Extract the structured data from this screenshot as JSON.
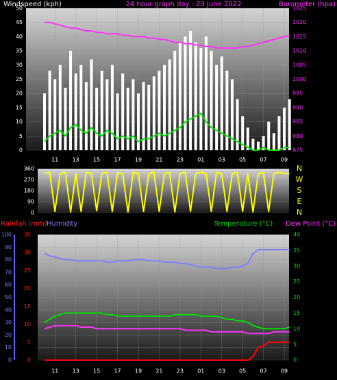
{
  "chart_data": [
    {
      "type": "bar",
      "title": "24 hour graph day : 23 June 2022",
      "ylabel": "Windspeed (kph)",
      "y2label": "Barometer (hpa)",
      "categories": [
        null,
        null,
        "11",
        null,
        null,
        null,
        "13",
        null,
        null,
        null,
        "15",
        null,
        null,
        null,
        "17",
        null,
        null,
        null,
        "19",
        null,
        null,
        null,
        "21",
        null,
        null,
        null,
        "23",
        null,
        null,
        null,
        "01",
        null,
        null,
        null,
        "03",
        null,
        null,
        null,
        "05",
        null,
        null,
        null,
        "07",
        null,
        null,
        null,
        "09",
        null
      ],
      "ylim": [
        0,
        50
      ],
      "yticks": [
        0,
        5,
        10,
        15,
        20,
        25,
        30,
        35,
        40,
        45,
        50
      ],
      "y2lim": [
        975,
        1025
      ],
      "y2ticks": [
        975,
        980,
        985,
        990,
        995,
        1000,
        1005,
        1010,
        1015,
        1020,
        1025
      ],
      "grid": true,
      "series": [
        {
          "type": "bar",
          "color": "#ffffff",
          "values": [
            20,
            28,
            25,
            30,
            22,
            35,
            27,
            30,
            24,
            32,
            22,
            28,
            25,
            30,
            20,
            27,
            22,
            25,
            20,
            24,
            23,
            26,
            28,
            30,
            32,
            35,
            38,
            40,
            42,
            38,
            36,
            40,
            35,
            30,
            33,
            28,
            25,
            18,
            12,
            8,
            4,
            3,
            5,
            10,
            6,
            12,
            15,
            18
          ]
        },
        {
          "type": "line",
          "color": "#00dd00",
          "values": [
            3,
            5,
            6,
            7,
            5,
            8,
            9,
            7,
            6,
            8,
            6,
            5,
            7,
            6,
            4,
            5,
            4,
            5,
            3,
            4,
            4,
            5,
            6,
            5,
            6,
            7,
            8,
            10,
            11,
            12,
            13,
            10,
            8,
            7,
            6,
            5,
            4,
            3,
            2,
            1,
            0,
            0,
            1,
            0,
            0,
            0,
            1,
            1
          ]
        },
        {
          "type": "line",
          "axis": "y2",
          "color": "#ff33ff",
          "values": [
            1020,
            1020,
            1019.5,
            1019,
            1018.5,
            1018,
            1018,
            1017.5,
            1017,
            1017,
            1016.5,
            1016.5,
            1016,
            1016,
            1016,
            1015.5,
            1015.5,
            1015,
            1015,
            1015,
            1014.5,
            1014.5,
            1014,
            1014,
            1013.5,
            1013,
            1013,
            1012.5,
            1012.5,
            1012,
            1012,
            1011.5,
            1011.5,
            1011,
            1011,
            1011,
            1011,
            1011,
            1011.5,
            1011.5,
            1012,
            1012.5,
            1013,
            1013.5,
            1014,
            1014.5,
            1015,
            1015.5
          ]
        }
      ]
    },
    {
      "type": "line",
      "ylim": [
        0,
        360
      ],
      "yticks": [
        0,
        90,
        180,
        270,
        360
      ],
      "y2lim": [
        0,
        360
      ],
      "y2ticks": [
        {
          "value": 0,
          "label": "N"
        },
        {
          "value": 90,
          "label": "E"
        },
        {
          "value": 180,
          "label": "S"
        },
        {
          "value": 270,
          "label": "W"
        },
        {
          "value": 360,
          "label": "N"
        }
      ],
      "grid": true,
      "series": [
        {
          "type": "line",
          "color": "#ffff00",
          "values": [
            320,
            330,
            10,
            320,
            330,
            5,
            320,
            10,
            330,
            320,
            15,
            320,
            330,
            10,
            325,
            320,
            5,
            330,
            320,
            10,
            320,
            330,
            10,
            320,
            330,
            5,
            320,
            330,
            10,
            320,
            330,
            320,
            10,
            330,
            320,
            10,
            320,
            330,
            10,
            320,
            5,
            320,
            330,
            10,
            320,
            330,
            320,
            320
          ]
        }
      ]
    },
    {
      "type": "line",
      "categories": [
        null,
        null,
        "11",
        null,
        null,
        null,
        "13",
        null,
        null,
        null,
        "15",
        null,
        null,
        null,
        "17",
        null,
        null,
        null,
        "19",
        null,
        null,
        null,
        "21",
        null,
        null,
        null,
        "23",
        null,
        null,
        null,
        "01",
        null,
        null,
        null,
        "03",
        null,
        null,
        null,
        "05",
        null,
        null,
        null,
        "07",
        null,
        null,
        null,
        "09",
        null
      ],
      "ylim": [
        0,
        100
      ],
      "yticks": [
        0,
        10,
        20,
        30,
        40,
        50,
        60,
        70,
        80,
        90,
        100
      ],
      "y3lim": [
        0,
        35
      ],
      "y3ticks": [
        0,
        5,
        10,
        15,
        20,
        25,
        30,
        35
      ],
      "y2lim": [
        0,
        40
      ],
      "y2ticks": [
        0,
        5,
        10,
        15,
        20,
        25,
        30,
        35,
        40
      ],
      "grid": true,
      "series": [
        {
          "name": "Rainfall (mm)",
          "type": "line",
          "axis": "y3",
          "color": "#ff0000",
          "values": [
            0,
            0,
            0,
            0,
            0,
            0,
            0,
            0,
            0,
            0,
            0,
            0,
            0,
            0,
            0,
            0,
            0,
            0,
            0,
            0,
            0,
            0,
            0,
            0,
            0,
            0,
            0,
            0,
            0,
            0,
            0,
            0,
            0,
            0,
            0,
            0,
            0,
            0,
            0,
            0,
            1,
            3.5,
            4,
            5,
            5,
            5,
            5,
            5
          ]
        },
        {
          "name": "Humidity",
          "type": "line",
          "color": "#8080ff",
          "values": [
            85,
            83,
            82,
            81,
            80,
            80,
            79,
            79,
            79,
            79,
            79,
            79,
            78,
            78,
            79,
            79,
            79,
            80,
            80,
            80,
            79,
            79,
            79,
            78,
            78,
            78,
            77,
            77,
            76,
            75,
            74,
            74,
            74,
            73,
            73,
            73,
            74,
            74,
            75,
            77,
            85,
            88,
            88,
            88,
            88,
            88,
            88,
            88
          ]
        },
        {
          "name": "Temperature (°C)",
          "type": "line",
          "axis": "y2",
          "color": "#00dd00",
          "values": [
            12,
            13,
            14,
            14.5,
            15,
            15,
            15,
            15,
            15,
            15,
            15,
            15,
            14.5,
            14.5,
            14,
            14,
            14,
            14,
            14,
            14,
            14,
            14,
            14,
            14,
            14,
            14.5,
            14.5,
            14.5,
            14.5,
            14.5,
            14,
            14,
            14,
            14,
            13.5,
            13,
            13,
            12.5,
            12.5,
            12,
            11,
            10.5,
            10,
            10,
            10,
            10,
            10,
            10.5
          ]
        },
        {
          "name": "Dew Point (°C)",
          "type": "line",
          "axis": "y2",
          "color": "#ff33ff",
          "values": [
            10,
            10.5,
            11,
            11,
            11,
            11,
            11,
            10.5,
            10.5,
            10.5,
            10,
            10,
            10,
            10,
            10,
            10,
            10,
            10,
            10,
            10,
            10,
            10,
            10,
            10,
            10,
            10,
            10,
            9.5,
            9.5,
            9.5,
            9.5,
            9.5,
            9,
            9,
            9,
            9,
            9,
            9,
            9,
            8.5,
            8.5,
            8.5,
            8.5,
            8.5,
            9,
            9,
            9,
            9
          ]
        }
      ]
    }
  ]
}
